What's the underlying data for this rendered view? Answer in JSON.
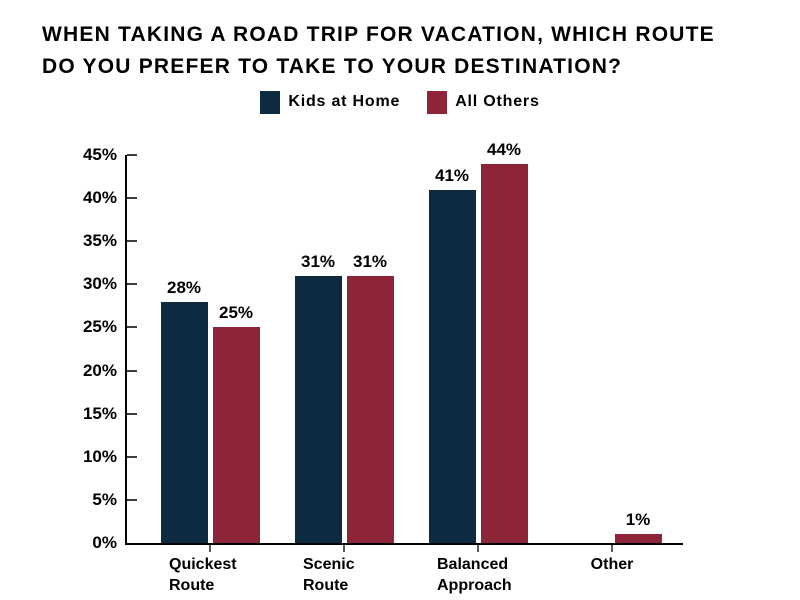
{
  "title": {
    "line1": "WHEN TAKING A ROAD TRIP FOR VACATION, WHICH ROUTE",
    "line2": "DO YOU PREFER TO TAKE TO YOUR DESTINATION?"
  },
  "chart_data": {
    "type": "bar",
    "title": "WHEN TAKING A ROAD TRIP FOR VACATION, WHICH ROUTE DO YOU PREFER TO TAKE TO YOUR DESTINATION?",
    "categories": [
      "Quickest Route",
      "Scenic Route",
      "Balanced Approach",
      "Other"
    ],
    "series": [
      {
        "name": "Kids at Home",
        "color": "#0d2b40",
        "values": [
          28,
          31,
          41,
          0
        ]
      },
      {
        "name": "All Others",
        "color": "#8e2437",
        "values": [
          25,
          31,
          44,
          1
        ]
      }
    ],
    "value_suffix": "%",
    "xlabel": "",
    "ylabel": "",
    "ylim": [
      0,
      45
    ],
    "ytick_step": 5,
    "yticks": [
      "0%",
      "5%",
      "10%",
      "15%",
      "20%",
      "25%",
      "30%",
      "35%",
      "40%",
      "45%"
    ],
    "grid": false,
    "legend_position": "top",
    "data_labels": true
  }
}
